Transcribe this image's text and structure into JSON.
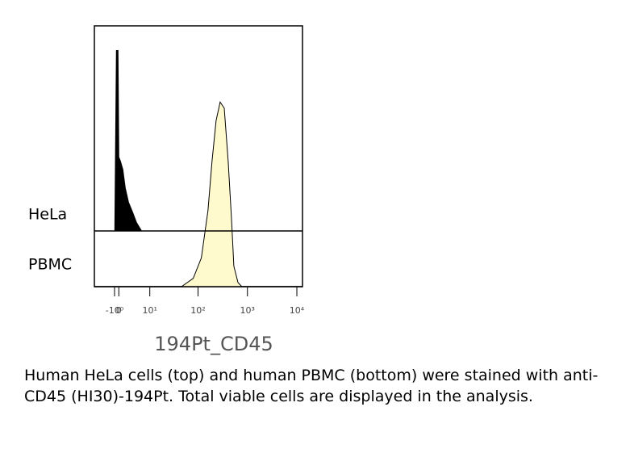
{
  "chart_data": {
    "type": "histogram",
    "xlabel": "194Pt_CD45",
    "xscale": "arcsinh",
    "xlim": [
      -7,
      13000
    ],
    "xticks": [
      {
        "value": -1,
        "label": "-10⁰"
      },
      0,
      {
        "value": 10,
        "label": "10¹"
      },
      {
        "value": 100,
        "label": "10²"
      },
      {
        "value": 1000,
        "label": "10³"
      },
      {
        "value": 10000,
        "label": "10⁴"
      }
    ],
    "ylim": [
      0,
      100
    ],
    "series": [
      {
        "name": "HeLa",
        "color": "#000000",
        "x": [
          -0.95,
          -0.57,
          -0.19,
          0,
          0.38,
          0.95,
          1.53,
          2.34,
          3.46,
          4.63,
          6.35
        ],
        "values": [
          0,
          88,
          88,
          36,
          34,
          30,
          21,
          14,
          9,
          4,
          0
        ]
      },
      {
        "name": "PBMC",
        "color": "#fffacd",
        "x": [
          46,
          80,
          117,
          159,
          192,
          232,
          280,
          339,
          408,
          477,
          532,
          643,
          773
        ],
        "values": [
          0,
          4,
          14,
          37,
          61,
          81,
          90,
          87,
          61,
          33,
          10,
          2,
          0
        ]
      }
    ],
    "caption": "Human HeLa cells (top) and human PBMC (bottom) were stained with anti-CD45 (HI30)-194Pt. Total viable cells are displayed in the analysis."
  }
}
